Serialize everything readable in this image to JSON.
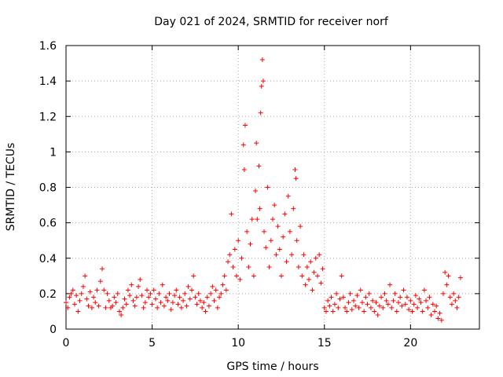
{
  "chart_data": {
    "type": "scatter",
    "title": "Day 021 of 2024, SRMTID for receiver norf",
    "xlabel": "GPS time / hours",
    "ylabel": "SRMTID / TECUs",
    "xlim": [
      0,
      24
    ],
    "ylim": [
      0,
      1.6
    ],
    "xticks": [
      0,
      5,
      10,
      15,
      20
    ],
    "xtick_labels": [
      "0",
      "5",
      "10",
      "15",
      "20"
    ],
    "yticks": [
      0,
      0.2,
      0.4,
      0.6,
      0.8,
      1.0,
      1.2,
      1.4,
      1.6
    ],
    "ytick_labels": [
      "0",
      "0.2",
      "0.4",
      "0.6",
      "0.8",
      "1",
      "1.2",
      "1.4",
      "1.6"
    ],
    "grid": true,
    "marker": "+",
    "color": "#ff0000",
    "series": [
      {
        "name": "SRMTID",
        "points": [
          [
            0.0,
            0.15
          ],
          [
            0.1,
            0.12
          ],
          [
            0.2,
            0.18
          ],
          [
            0.3,
            0.2
          ],
          [
            0.4,
            0.22
          ],
          [
            0.5,
            0.14
          ],
          [
            0.6,
            0.19
          ],
          [
            0.7,
            0.1
          ],
          [
            0.8,
            0.16
          ],
          [
            0.9,
            0.2
          ],
          [
            1.0,
            0.24
          ],
          [
            1.1,
            0.3
          ],
          [
            1.2,
            0.17
          ],
          [
            1.3,
            0.13
          ],
          [
            1.4,
            0.21
          ],
          [
            1.5,
            0.12
          ],
          [
            1.6,
            0.18
          ],
          [
            1.7,
            0.15
          ],
          [
            1.8,
            0.22
          ],
          [
            1.9,
            0.13
          ],
          [
            2.0,
            0.27
          ],
          [
            2.1,
            0.34
          ],
          [
            2.2,
            0.22
          ],
          [
            2.3,
            0.12
          ],
          [
            2.4,
            0.2
          ],
          [
            2.5,
            0.16
          ],
          [
            2.6,
            0.12
          ],
          [
            2.7,
            0.13
          ],
          [
            2.8,
            0.18
          ],
          [
            2.9,
            0.15
          ],
          [
            3.0,
            0.2
          ],
          [
            3.1,
            0.1
          ],
          [
            3.2,
            0.08
          ],
          [
            3.3,
            0.12
          ],
          [
            3.4,
            0.17
          ],
          [
            3.5,
            0.14
          ],
          [
            3.6,
            0.22
          ],
          [
            3.7,
            0.19
          ],
          [
            3.8,
            0.25
          ],
          [
            3.9,
            0.16
          ],
          [
            4.0,
            0.13
          ],
          [
            4.1,
            0.18
          ],
          [
            4.2,
            0.24
          ],
          [
            4.3,
            0.28
          ],
          [
            4.4,
            0.19
          ],
          [
            4.5,
            0.12
          ],
          [
            4.6,
            0.15
          ],
          [
            4.7,
            0.22
          ],
          [
            4.8,
            0.18
          ],
          [
            4.9,
            0.2
          ],
          [
            5.0,
            0.14
          ],
          [
            5.1,
            0.22
          ],
          [
            5.2,
            0.17
          ],
          [
            5.3,
            0.12
          ],
          [
            5.4,
            0.2
          ],
          [
            5.5,
            0.15
          ],
          [
            5.6,
            0.25
          ],
          [
            5.7,
            0.13
          ],
          [
            5.8,
            0.18
          ],
          [
            5.9,
            0.16
          ],
          [
            6.0,
            0.2
          ],
          [
            6.1,
            0.11
          ],
          [
            6.2,
            0.15
          ],
          [
            6.3,
            0.19
          ],
          [
            6.4,
            0.22
          ],
          [
            6.5,
            0.14
          ],
          [
            6.6,
            0.18
          ],
          [
            6.7,
            0.12
          ],
          [
            6.8,
            0.16
          ],
          [
            6.9,
            0.2
          ],
          [
            7.0,
            0.13
          ],
          [
            7.1,
            0.24
          ],
          [
            7.2,
            0.17
          ],
          [
            7.3,
            0.22
          ],
          [
            7.4,
            0.3
          ],
          [
            7.5,
            0.18
          ],
          [
            7.6,
            0.14
          ],
          [
            7.7,
            0.2
          ],
          [
            7.8,
            0.16
          ],
          [
            7.9,
            0.12
          ],
          [
            8.0,
            0.15
          ],
          [
            8.1,
            0.1
          ],
          [
            8.2,
            0.18
          ],
          [
            8.3,
            0.13
          ],
          [
            8.4,
            0.2
          ],
          [
            8.5,
            0.24
          ],
          [
            8.6,
            0.16
          ],
          [
            8.7,
            0.22
          ],
          [
            8.8,
            0.12
          ],
          [
            8.9,
            0.18
          ],
          [
            9.0,
            0.2
          ],
          [
            9.1,
            0.25
          ],
          [
            9.2,
            0.3
          ],
          [
            9.3,
            0.22
          ],
          [
            9.4,
            0.38
          ],
          [
            9.5,
            0.42
          ],
          [
            9.6,
            0.65
          ],
          [
            9.7,
            0.35
          ],
          [
            9.8,
            0.45
          ],
          [
            9.9,
            0.3
          ],
          [
            10.0,
            0.5
          ],
          [
            10.1,
            0.28
          ],
          [
            10.2,
            0.4
          ],
          [
            10.3,
            1.04
          ],
          [
            10.35,
            0.9
          ],
          [
            10.4,
            1.15
          ],
          [
            10.5,
            0.55
          ],
          [
            10.6,
            0.35
          ],
          [
            10.7,
            0.48
          ],
          [
            10.8,
            0.62
          ],
          [
            10.9,
            0.3
          ],
          [
            11.0,
            0.78
          ],
          [
            11.05,
            1.05
          ],
          [
            11.1,
            0.62
          ],
          [
            11.2,
            0.92
          ],
          [
            11.25,
            0.68
          ],
          [
            11.3,
            1.22
          ],
          [
            11.35,
            1.37
          ],
          [
            11.4,
            1.52
          ],
          [
            11.45,
            1.4
          ],
          [
            11.5,
            0.55
          ],
          [
            11.6,
            0.46
          ],
          [
            11.7,
            0.8
          ],
          [
            11.8,
            0.35
          ],
          [
            11.9,
            0.5
          ],
          [
            12.0,
            0.62
          ],
          [
            12.1,
            0.7
          ],
          [
            12.2,
            0.42
          ],
          [
            12.3,
            0.58
          ],
          [
            12.4,
            0.45
          ],
          [
            12.5,
            0.3
          ],
          [
            12.6,
            0.52
          ],
          [
            12.7,
            0.65
          ],
          [
            12.8,
            0.38
          ],
          [
            12.9,
            0.75
          ],
          [
            13.0,
            0.55
          ],
          [
            13.1,
            0.42
          ],
          [
            13.2,
            0.68
          ],
          [
            13.3,
            0.9
          ],
          [
            13.35,
            0.85
          ],
          [
            13.4,
            0.5
          ],
          [
            13.5,
            0.35
          ],
          [
            13.6,
            0.58
          ],
          [
            13.7,
            0.3
          ],
          [
            13.8,
            0.42
          ],
          [
            13.9,
            0.25
          ],
          [
            14.0,
            0.35
          ],
          [
            14.1,
            0.28
          ],
          [
            14.2,
            0.38
          ],
          [
            14.3,
            0.22
          ],
          [
            14.4,
            0.32
          ],
          [
            14.5,
            0.4
          ],
          [
            14.6,
            0.3
          ],
          [
            14.7,
            0.42
          ],
          [
            14.8,
            0.26
          ],
          [
            14.9,
            0.34
          ],
          [
            15.0,
            0.12
          ],
          [
            15.1,
            0.1
          ],
          [
            15.2,
            0.16
          ],
          [
            15.3,
            0.13
          ],
          [
            15.4,
            0.18
          ],
          [
            15.5,
            0.1
          ],
          [
            15.6,
            0.14
          ],
          [
            15.7,
            0.2
          ],
          [
            15.8,
            0.12
          ],
          [
            15.9,
            0.17
          ],
          [
            16.0,
            0.3
          ],
          [
            16.1,
            0.18
          ],
          [
            16.2,
            0.12
          ],
          [
            16.3,
            0.1
          ],
          [
            16.4,
            0.15
          ],
          [
            16.5,
            0.2
          ],
          [
            16.6,
            0.11
          ],
          [
            16.7,
            0.16
          ],
          [
            16.8,
            0.13
          ],
          [
            16.9,
            0.19
          ],
          [
            17.0,
            0.12
          ],
          [
            17.1,
            0.22
          ],
          [
            17.2,
            0.15
          ],
          [
            17.3,
            0.1
          ],
          [
            17.4,
            0.18
          ],
          [
            17.5,
            0.14
          ],
          [
            17.6,
            0.2
          ],
          [
            17.7,
            0.12
          ],
          [
            17.8,
            0.16
          ],
          [
            17.9,
            0.1
          ],
          [
            18.0,
            0.15
          ],
          [
            18.1,
            0.08
          ],
          [
            18.2,
            0.13
          ],
          [
            18.3,
            0.18
          ],
          [
            18.4,
            0.12
          ],
          [
            18.5,
            0.2
          ],
          [
            18.6,
            0.16
          ],
          [
            18.7,
            0.14
          ],
          [
            18.8,
            0.25
          ],
          [
            18.9,
            0.12
          ],
          [
            19.0,
            0.16
          ],
          [
            19.1,
            0.2
          ],
          [
            19.2,
            0.1
          ],
          [
            19.3,
            0.15
          ],
          [
            19.4,
            0.18
          ],
          [
            19.5,
            0.13
          ],
          [
            19.6,
            0.22
          ],
          [
            19.7,
            0.14
          ],
          [
            19.8,
            0.18
          ],
          [
            19.9,
            0.11
          ],
          [
            20.0,
            0.16
          ],
          [
            20.1,
            0.1
          ],
          [
            20.2,
            0.14
          ],
          [
            20.3,
            0.19
          ],
          [
            20.4,
            0.12
          ],
          [
            20.5,
            0.17
          ],
          [
            20.6,
            0.15
          ],
          [
            20.7,
            0.1
          ],
          [
            20.8,
            0.22
          ],
          [
            20.9,
            0.16
          ],
          [
            21.0,
            0.12
          ],
          [
            21.1,
            0.18
          ],
          [
            21.2,
            0.08
          ],
          [
            21.3,
            0.14
          ],
          [
            21.4,
            0.1
          ],
          [
            21.5,
            0.13
          ],
          [
            21.6,
            0.06
          ],
          [
            21.7,
            0.09
          ],
          [
            21.8,
            0.05
          ],
          [
            21.9,
            0.2
          ],
          [
            22.0,
            0.32
          ],
          [
            22.1,
            0.25
          ],
          [
            22.2,
            0.3
          ],
          [
            22.3,
            0.18
          ],
          [
            22.4,
            0.14
          ],
          [
            22.5,
            0.2
          ],
          [
            22.6,
            0.16
          ],
          [
            22.7,
            0.12
          ],
          [
            22.8,
            0.18
          ],
          [
            22.9,
            0.29
          ]
        ]
      }
    ]
  }
}
